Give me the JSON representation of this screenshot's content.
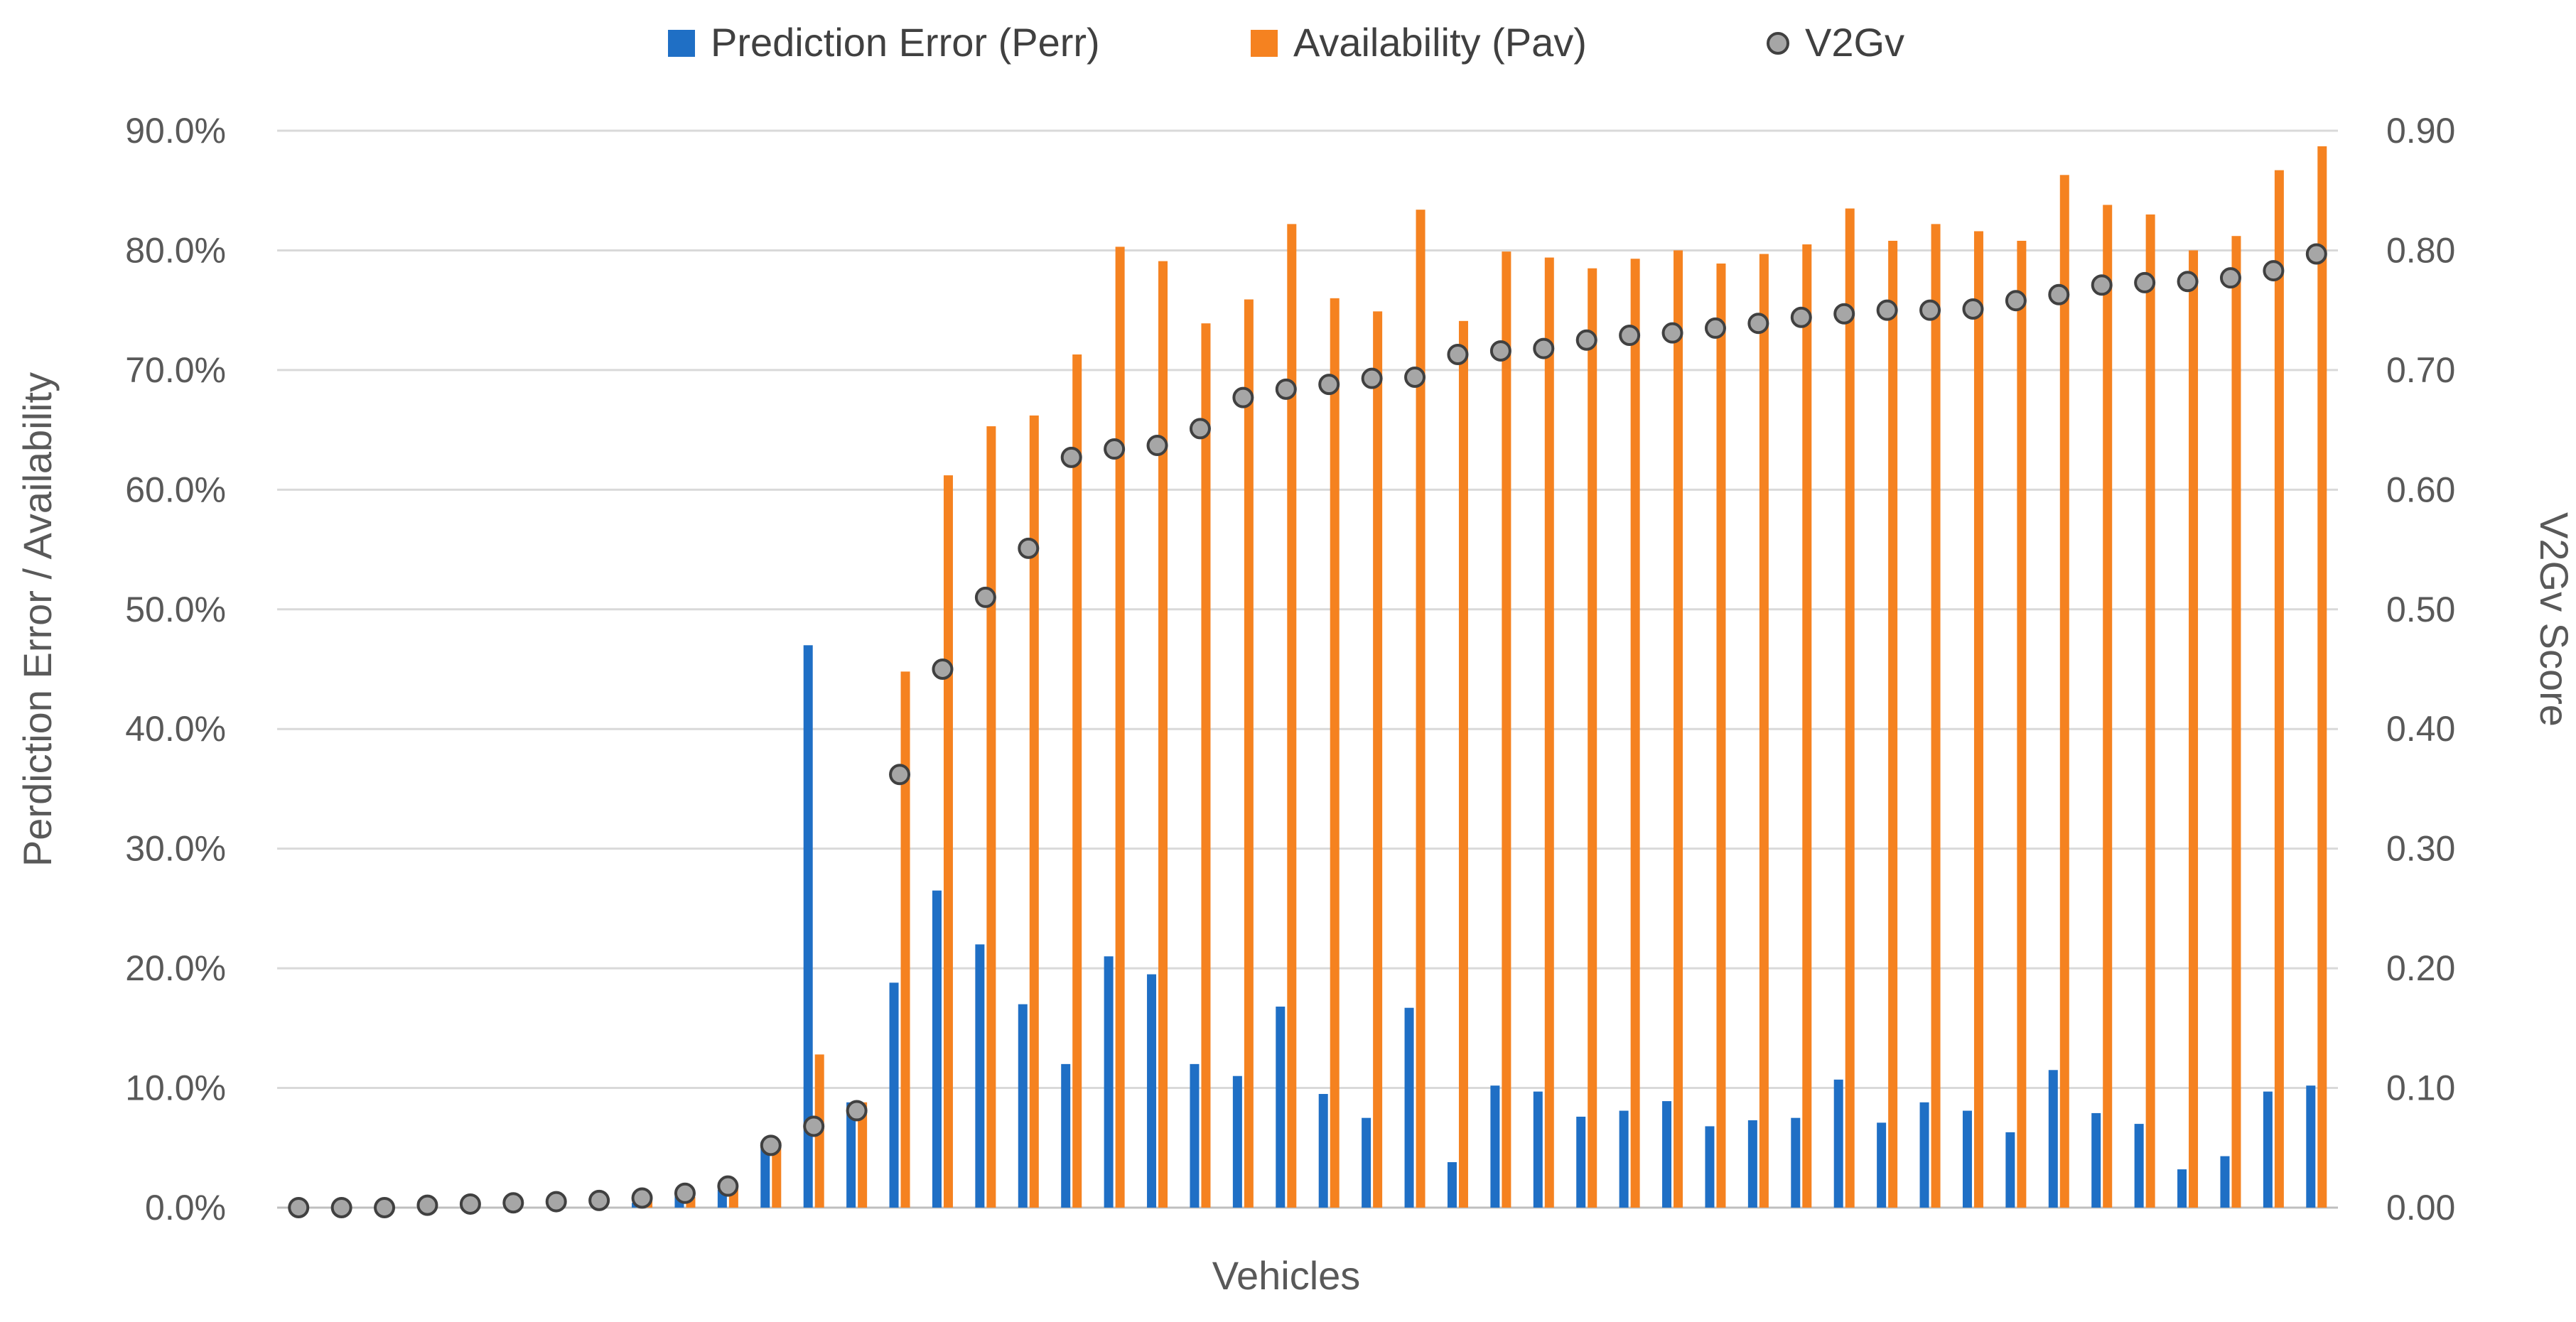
{
  "chart_data": {
    "type": "bar",
    "title": "",
    "xlabel": "Vehicles",
    "ylabel_left": "Perdiction Error / Availability",
    "ylabel_right": "V2Gv Score",
    "ylim_left": [
      0,
      90
    ],
    "ylim_right": [
      0,
      0.9
    ],
    "y_ticks_left": [
      "0.0%",
      "10.0%",
      "20.0%",
      "30.0%",
      "40.0%",
      "50.0%",
      "60.0%",
      "70.0%",
      "80.0%",
      "90.0%"
    ],
    "y_ticks_right": [
      "0.00",
      "0.10",
      "0.20",
      "0.30",
      "0.40",
      "0.50",
      "0.60",
      "0.70",
      "0.80",
      "0.90"
    ],
    "grid": true,
    "legend_position": "top",
    "colors": {
      "perr": "#1F6FC5",
      "pav": "#F58220",
      "v2gv_fill": "#A6A6A6",
      "v2gv_stroke": "#404040",
      "grid": "#D9D9D9",
      "text": "#595959"
    },
    "series": [
      {
        "name": "Prediction Error (Perr)",
        "kind": "bar",
        "axis": "left",
        "values": [
          0,
          0,
          0,
          0,
          0,
          0,
          0,
          0,
          0.4,
          1.0,
          1.5,
          5.5,
          47.0,
          8.8,
          18.8,
          26.5,
          22.0,
          17.0,
          12.0,
          21.0,
          19.5,
          12.0,
          11.0,
          16.8,
          9.5,
          7.5,
          16.7,
          3.8,
          10.2,
          9.7,
          7.6,
          8.1,
          8.9,
          6.8,
          7.3,
          7.5,
          10.7,
          7.1,
          8.8,
          8.1,
          6.3,
          11.5,
          7.9,
          7.0,
          3.2,
          4.3,
          9.7,
          10.2
        ]
      },
      {
        "name": "Availability (Pav)",
        "kind": "bar",
        "axis": "left",
        "values": [
          0,
          0,
          0,
          0,
          0,
          0,
          0,
          0,
          0.7,
          0.9,
          1.6,
          5.5,
          12.8,
          8.8,
          44.8,
          61.2,
          65.3,
          66.2,
          71.3,
          80.3,
          79.1,
          73.9,
          75.9,
          82.2,
          76.0,
          74.9,
          83.4,
          74.1,
          79.9,
          79.4,
          78.5,
          79.3,
          80.0,
          78.9,
          79.7,
          80.5,
          83.5,
          80.8,
          82.2,
          81.6,
          80.8,
          86.3,
          83.8,
          83.0,
          80.0,
          81.2,
          86.7,
          88.7
        ]
      },
      {
        "name": "V2Gv",
        "kind": "scatter",
        "axis": "right",
        "values": [
          0.0,
          0.0,
          0.0,
          0.002,
          0.003,
          0.004,
          0.005,
          0.006,
          0.008,
          0.012,
          0.018,
          0.052,
          0.068,
          0.081,
          0.362,
          0.45,
          0.51,
          0.551,
          0.627,
          0.634,
          0.637,
          0.651,
          0.677,
          0.684,
          0.688,
          0.693,
          0.694,
          0.713,
          0.716,
          0.718,
          0.725,
          0.729,
          0.731,
          0.735,
          0.739,
          0.744,
          0.747,
          0.75,
          0.75,
          0.751,
          0.758,
          0.763,
          0.771,
          0.773,
          0.774,
          0.777,
          0.783,
          0.797
        ]
      }
    ]
  }
}
